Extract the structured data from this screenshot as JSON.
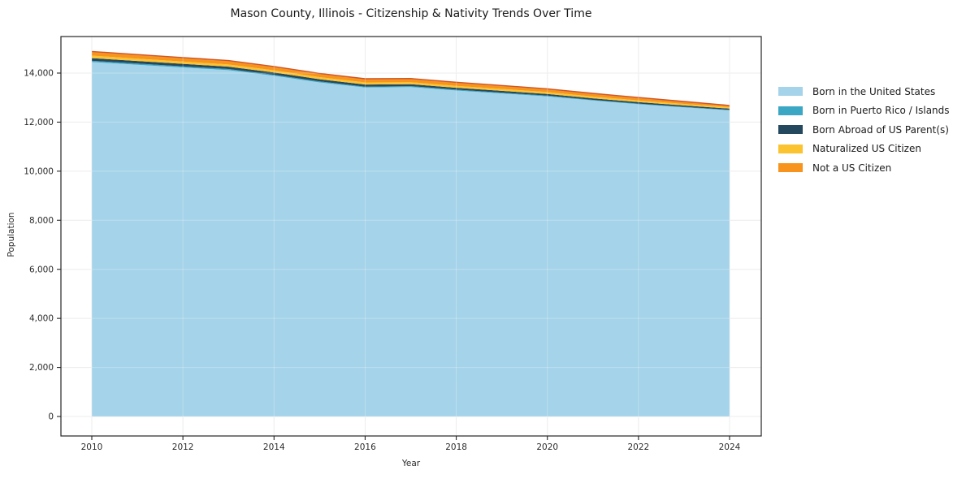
{
  "title": "Mason County, Illinois - Citizenship & Nativity Trends Over Time",
  "chart_data": {
    "type": "area",
    "stacked": true,
    "title": "Mason County, Illinois - Citizenship & Nativity Trends Over Time",
    "xlabel": "Year",
    "ylabel": "Population",
    "x": [
      2010,
      2011,
      2012,
      2013,
      2014,
      2015,
      2016,
      2017,
      2018,
      2019,
      2020,
      2021,
      2022,
      2023,
      2024
    ],
    "series": [
      {
        "name": "Born in the United States",
        "color": "#a5d3e9",
        "values": [
          14450,
          14340,
          14230,
          14120,
          13890,
          13620,
          13410,
          13430,
          13290,
          13170,
          13050,
          12880,
          12730,
          12600,
          12480
        ]
      },
      {
        "name": "Born in Puerto Rico / Islands",
        "color": "#3ca7c4",
        "values": [
          50,
          48,
          46,
          44,
          42,
          40,
          38,
          36,
          34,
          32,
          30,
          28,
          26,
          24,
          20
        ]
      },
      {
        "name": "Born Abroad of US Parent(s)",
        "color": "#24495e",
        "values": [
          110,
          105,
          100,
          96,
          92,
          88,
          84,
          80,
          76,
          72,
          68,
          64,
          60,
          55,
          50
        ]
      },
      {
        "name": "Naturalized US Citizen",
        "color": "#fbc330",
        "values": [
          100,
          97,
          94,
          92,
          90,
          88,
          86,
          84,
          82,
          80,
          76,
          72,
          68,
          64,
          60
        ]
      },
      {
        "name": "Not a US Citizen",
        "color": "#f6941e",
        "values": [
          170,
          166,
          162,
          158,
          155,
          152,
          150,
          148,
          145,
          140,
          135,
          128,
          120,
          100,
          70
        ],
        "edge_color": "#d0542b"
      }
    ],
    "xticks": [
      2010,
      2012,
      2014,
      2016,
      2018,
      2020,
      2022,
      2024
    ],
    "xtick_labels": [
      "2010",
      "2012",
      "2014",
      "2016",
      "2018",
      "2020",
      "2022",
      "2024"
    ],
    "yticks": [
      0,
      2000,
      4000,
      6000,
      8000,
      10000,
      12000,
      14000
    ],
    "ytick_labels": [
      "0",
      "2,000",
      "4,000",
      "6,000",
      "8,000",
      "10,000",
      "12,000",
      "14,000"
    ],
    "xlim": [
      2009.3,
      2024.7
    ],
    "ylim": [
      -800,
      15500
    ],
    "grid": true,
    "legend_position": "right"
  }
}
